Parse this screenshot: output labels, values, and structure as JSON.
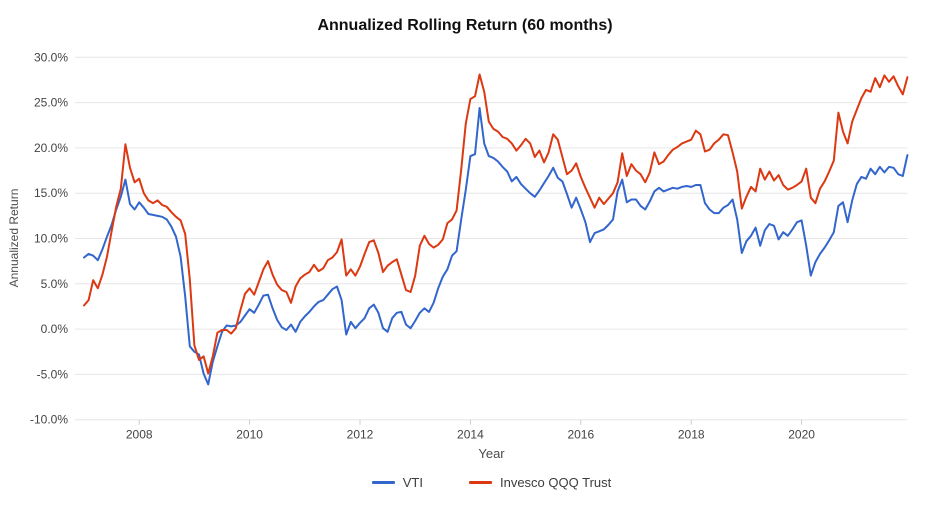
{
  "chart_data": {
    "type": "line",
    "title": "Annualized Rolling Return (60 months)",
    "xlabel": "Year",
    "ylabel": "Annualized Return",
    "x_start": "2007-01",
    "x_end": "2021-12",
    "x_frequency": "monthly",
    "points_per_series": 180,
    "ylim": [
      -10,
      30
    ],
    "yticks": [
      30,
      25,
      20,
      15,
      10,
      5,
      0,
      -5,
      -10
    ],
    "ytick_labels": [
      "30.0%",
      "25.0%",
      "20.0%",
      "15.0%",
      "10.0%",
      "5.0%",
      "0.0%",
      "-5.0%",
      "-10.0%"
    ],
    "xticks": [
      2008,
      2010,
      2012,
      2014,
      2016,
      2018,
      2020
    ],
    "grid": true,
    "legend_position": "bottom",
    "series": [
      {
        "name": "VTI",
        "color": "#3366cc",
        "values": [
          7.9,
          8.3,
          8.1,
          7.6,
          8.8,
          10.2,
          11.5,
          13.2,
          14.6,
          16.5,
          13.8,
          13.2,
          14.0,
          13.4,
          12.7,
          12.6,
          12.5,
          12.4,
          12.1,
          11.3,
          10.2,
          8.0,
          3.6,
          -1.9,
          -2.5,
          -2.8,
          -4.9,
          -6.1,
          -3.6,
          -1.9,
          -0.3,
          0.4,
          0.3,
          0.4,
          0.8,
          1.5,
          2.2,
          1.8,
          2.7,
          3.7,
          3.8,
          2.3,
          1.0,
          0.2,
          -0.1,
          0.5,
          -0.3,
          0.8,
          1.4,
          1.9,
          2.5,
          3.0,
          3.2,
          3.8,
          4.4,
          4.7,
          3.2,
          -0.6,
          0.8,
          0.1,
          0.7,
          1.2,
          2.3,
          2.7,
          1.8,
          0.1,
          -0.3,
          1.2,
          1.8,
          1.9,
          0.5,
          0.1,
          0.9,
          1.8,
          2.3,
          1.9,
          2.9,
          4.5,
          5.8,
          6.6,
          8.1,
          8.6,
          12.1,
          15.4,
          19.1,
          19.3,
          24.4,
          20.5,
          19.1,
          18.9,
          18.5,
          17.9,
          17.4,
          16.3,
          16.8,
          16.0,
          15.5,
          15.0,
          14.6,
          15.3,
          16.1,
          16.9,
          17.8,
          16.7,
          16.3,
          14.9,
          13.4,
          14.5,
          13.2,
          11.8,
          9.6,
          10.6,
          10.8,
          11.0,
          11.5,
          12.1,
          15.2,
          16.5,
          14.0,
          14.3,
          14.3,
          13.6,
          13.2,
          14.1,
          15.2,
          15.6,
          15.2,
          15.4,
          15.6,
          15.5,
          15.7,
          15.8,
          15.7,
          15.9,
          15.9,
          13.9,
          13.2,
          12.8,
          12.8,
          13.4,
          13.7,
          14.3,
          12.1,
          8.4,
          9.7,
          10.3,
          11.2,
          9.2,
          10.9,
          11.6,
          11.4,
          9.9,
          10.7,
          10.3,
          11.0,
          11.8,
          12.0,
          9.2,
          5.9,
          7.4,
          8.3,
          9.0,
          9.8,
          10.7,
          13.6,
          14.0,
          11.8,
          14.2,
          16.0,
          16.8,
          16.6,
          17.7,
          17.1,
          17.9,
          17.3,
          17.9,
          17.8,
          17.1,
          16.9,
          19.2
        ]
      },
      {
        "name": "Invesco QQQ Trust",
        "color": "#dc3912",
        "values": [
          2.6,
          3.2,
          5.4,
          4.5,
          6.0,
          8.0,
          10.8,
          13.5,
          15.5,
          20.4,
          17.8,
          16.2,
          16.6,
          15.0,
          14.2,
          13.9,
          14.2,
          13.7,
          13.5,
          12.9,
          12.4,
          12.0,
          10.5,
          5.5,
          -1.8,
          -3.4,
          -3.0,
          -4.9,
          -3.0,
          -0.4,
          -0.1,
          -0.1,
          -0.5,
          0.1,
          2.1,
          3.9,
          4.5,
          3.8,
          5.2,
          6.6,
          7.5,
          6.0,
          4.9,
          4.3,
          4.1,
          2.9,
          4.7,
          5.6,
          6.0,
          6.3,
          7.1,
          6.4,
          6.7,
          7.6,
          7.9,
          8.5,
          9.9,
          5.9,
          6.6,
          5.9,
          6.9,
          8.3,
          9.6,
          9.8,
          8.4,
          6.3,
          7.0,
          7.4,
          7.7,
          6.0,
          4.3,
          4.1,
          5.9,
          9.2,
          10.3,
          9.4,
          9.0,
          9.3,
          9.9,
          11.7,
          12.1,
          13.1,
          17.6,
          22.7,
          25.4,
          25.7,
          28.1,
          26.2,
          22.9,
          22.1,
          21.8,
          21.2,
          21.0,
          20.5,
          19.7,
          20.3,
          21.0,
          20.5,
          19.0,
          19.7,
          18.4,
          19.5,
          21.5,
          20.9,
          19.0,
          17.1,
          17.5,
          18.3,
          16.8,
          15.6,
          14.5,
          13.4,
          14.5,
          13.8,
          14.4,
          15.0,
          16.2,
          19.4,
          16.9,
          18.2,
          17.5,
          17.1,
          16.2,
          17.3,
          19.5,
          18.2,
          18.5,
          19.2,
          19.8,
          20.1,
          20.5,
          20.7,
          20.9,
          21.9,
          21.5,
          19.6,
          19.8,
          20.5,
          20.9,
          21.5,
          21.4,
          19.5,
          17.4,
          13.3,
          14.6,
          15.7,
          15.2,
          17.7,
          16.5,
          17.4,
          16.4,
          17.0,
          15.9,
          15.4,
          15.6,
          15.9,
          16.3,
          17.7,
          14.5,
          13.9,
          15.5,
          16.3,
          17.4,
          18.6,
          23.9,
          21.8,
          20.5,
          22.9,
          24.2,
          25.5,
          26.4,
          26.2,
          27.7,
          26.7,
          28.0,
          27.3,
          27.9,
          26.8,
          25.9,
          27.8
        ]
      }
    ]
  },
  "legend": {
    "items": [
      {
        "label": "VTI",
        "color": "#3366cc"
      },
      {
        "label": "Invesco QQQ Trust",
        "color": "#dc3912"
      }
    ]
  },
  "colors": {
    "grid": "#e6e6e6",
    "axis_tick": "#cccccc",
    "tick_text": "#444444",
    "axis_title_text": "#4d4d4d",
    "title_text": "#111111",
    "background": "#ffffff"
  }
}
